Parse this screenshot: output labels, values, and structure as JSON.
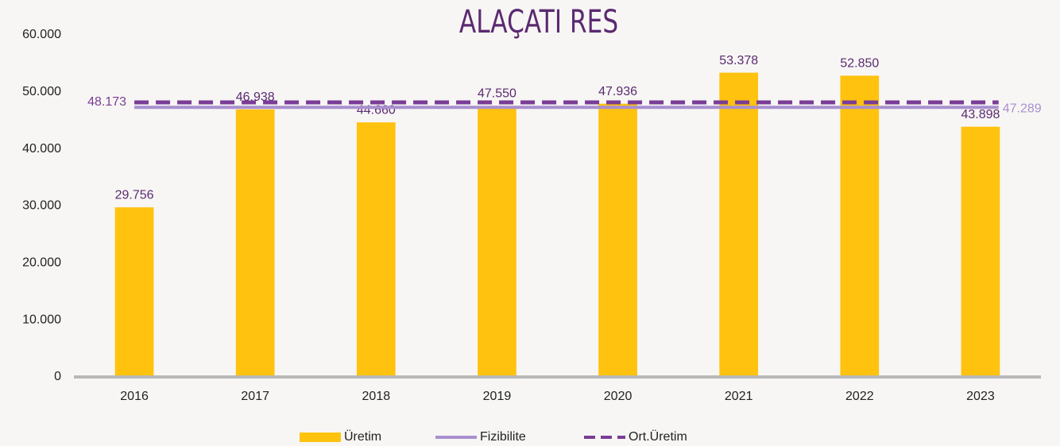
{
  "chart_data": {
    "type": "bar",
    "title": "ALAÇATI RES",
    "categories": [
      "2016",
      "2017",
      "2018",
      "2019",
      "2020",
      "2021",
      "2022",
      "2023"
    ],
    "series": [
      {
        "name": "Üretim",
        "color": "#ffc20e",
        "values": [
          29756,
          46938,
          44660,
          47550,
          47936,
          53378,
          52850,
          43898
        ],
        "value_labels": [
          "29.756",
          "46.938",
          "44.660",
          "47.550",
          "47.936",
          "53.378",
          "52.850",
          "43.898"
        ]
      },
      {
        "name": "Fizibilite",
        "color": "#a990cf",
        "style": "solid",
        "value": 47289,
        "value_label": "47.289"
      },
      {
        "name": "Ort.Üretim",
        "color": "#7a3d96",
        "style": "dashed",
        "value": 48173,
        "value_label": "48.173"
      }
    ],
    "ylim": [
      0,
      60000
    ],
    "yticks": [
      0,
      {
        "value": 10000,
        "label": "10.000"
      },
      {
        "value": 20000,
        "label": "20.000"
      },
      {
        "value": 30000,
        "label": "30.000"
      },
      {
        "value": 40000,
        "label": "40.000"
      },
      {
        "value": 50000,
        "label": "50.000"
      },
      {
        "value": 60000,
        "label": "60.000"
      }
    ],
    "grid": false
  }
}
